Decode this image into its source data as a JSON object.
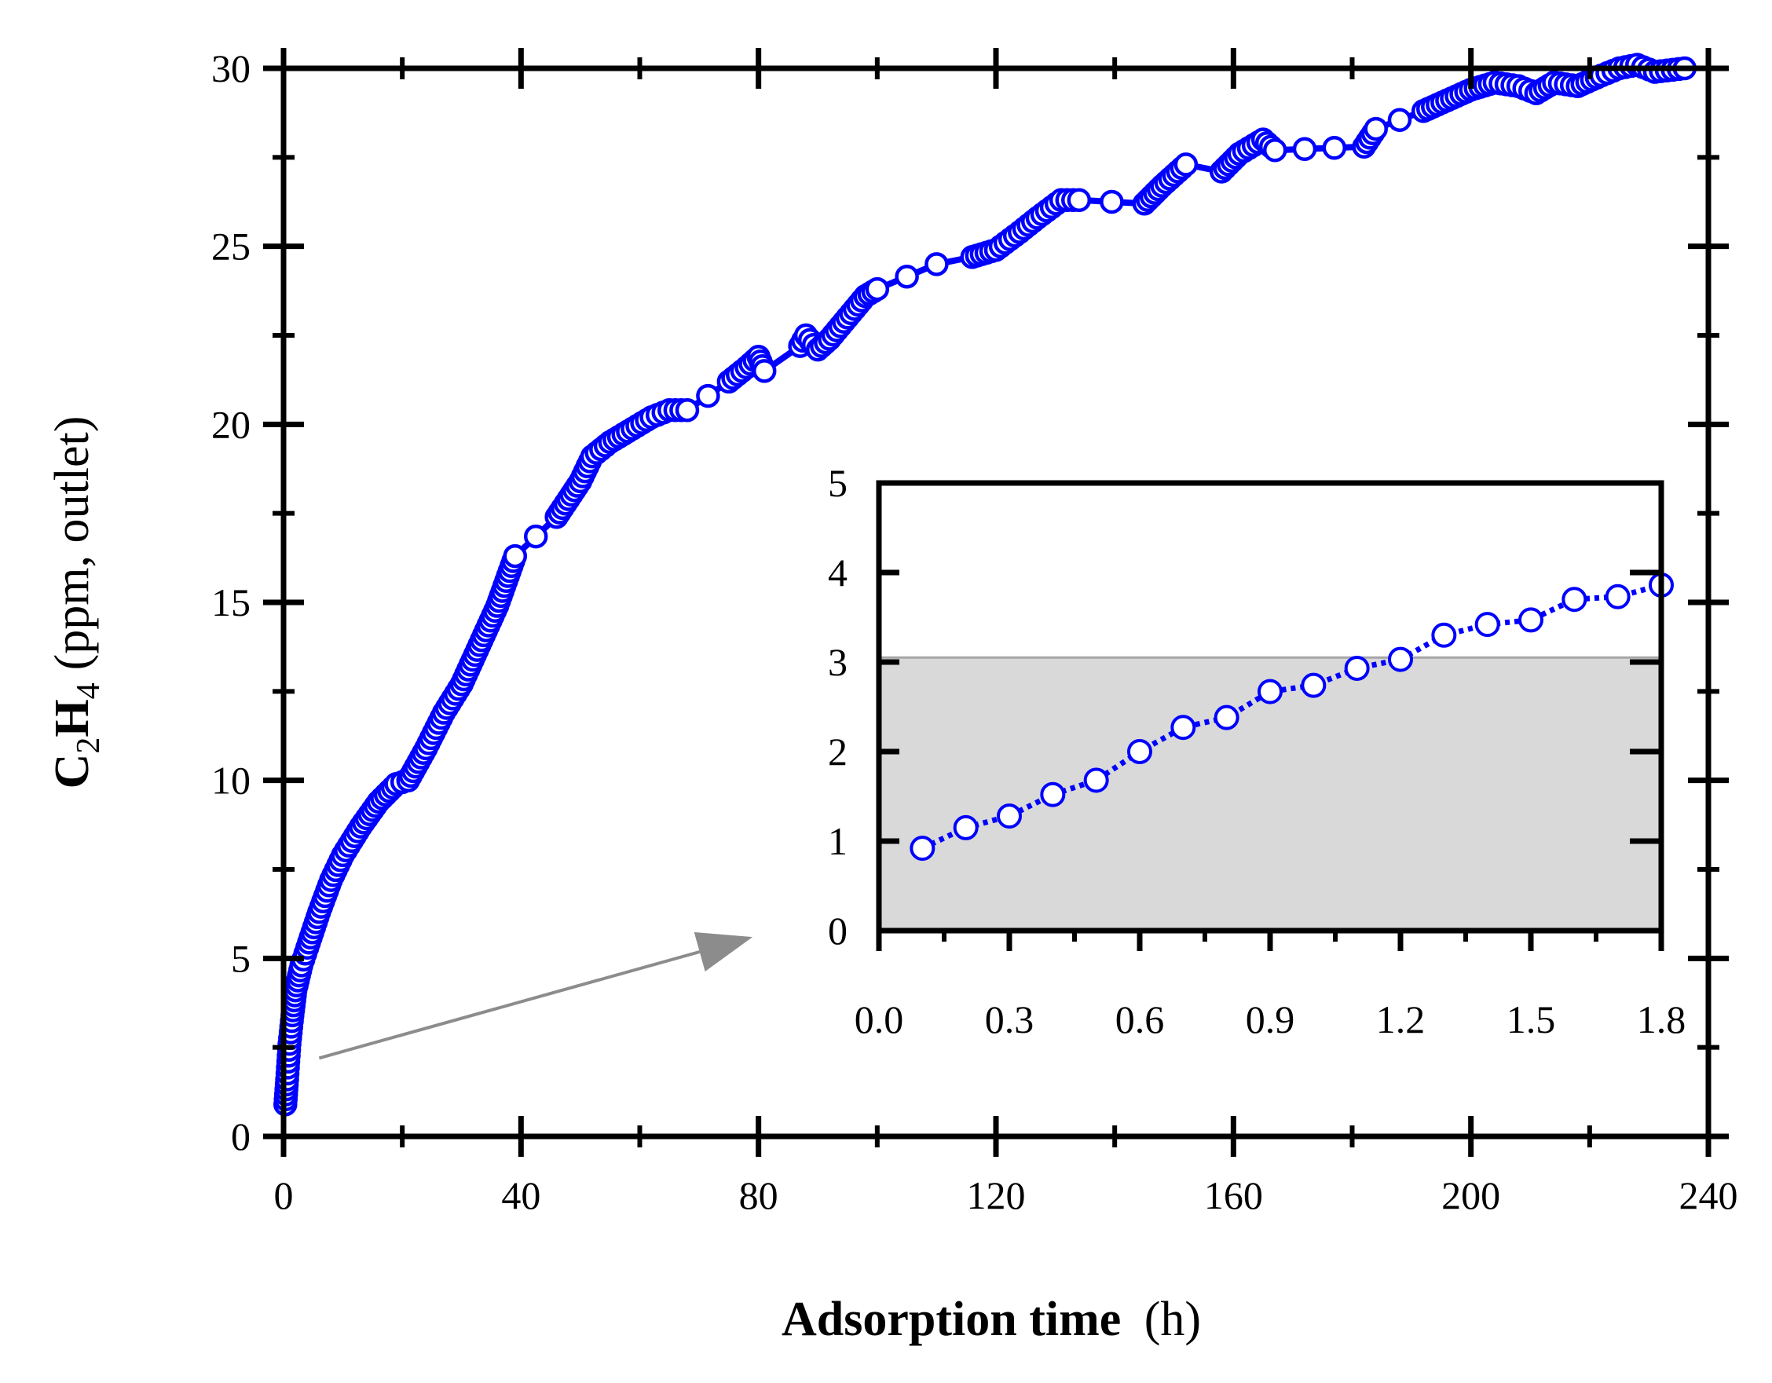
{
  "chart_data": [
    {
      "id": "main",
      "type": "scatter",
      "title": "",
      "xlabel": "Adsorption time",
      "xlabel_unit": "(h)",
      "ylabel_species": "C2H4",
      "ylabel_parts": {
        "C": "C",
        "sub1": "2",
        "H": "H",
        "sub2": "4"
      },
      "ylabel_rest": "(ppm, outlet)",
      "xlim": [
        0,
        240
      ],
      "ylim": [
        0,
        30
      ],
      "xticks": [
        0,
        40,
        80,
        120,
        160,
        200,
        240
      ],
      "yticks": [
        0,
        5,
        10,
        15,
        20,
        25,
        30
      ],
      "series_color": "#0000ff",
      "key_points": {
        "x": [
          0.3,
          0.6,
          1,
          1.5,
          2,
          3,
          4,
          6,
          8,
          10,
          13,
          16,
          19,
          21,
          24,
          27,
          30,
          33,
          36,
          39,
          46,
          50,
          52,
          55,
          58,
          62,
          65,
          68,
          75,
          78,
          80,
          81,
          87,
          88,
          90,
          92,
          95,
          98,
          100,
          110,
          116,
          120,
          124,
          127,
          131,
          134,
          145,
          148,
          152,
          158,
          161,
          165,
          167,
          182,
          184,
          192,
          196,
          200,
          204,
          208,
          211,
          214,
          218,
          222,
          225,
          228,
          231,
          236
        ],
        "y": [
          0.9,
          1.6,
          2.6,
          3.4,
          4.1,
          4.8,
          5.3,
          6.3,
          7.2,
          7.9,
          8.7,
          9.4,
          9.9,
          10.0,
          10.9,
          11.9,
          12.7,
          13.8,
          14.9,
          16.3,
          17.4,
          18.4,
          19.1,
          19.5,
          19.8,
          20.2,
          20.4,
          20.4,
          21.2,
          21.6,
          21.9,
          21.5,
          22.2,
          22.5,
          22.1,
          22.4,
          23.0,
          23.6,
          23.8,
          24.5,
          24.7,
          24.9,
          25.4,
          25.8,
          26.3,
          26.3,
          26.2,
          26.7,
          27.3,
          27.1,
          27.6,
          28.0,
          27.7,
          27.8,
          28.3,
          28.8,
          29.1,
          29.4,
          29.6,
          29.5,
          29.3,
          29.6,
          29.5,
          29.8,
          30.0,
          30.1,
          29.9,
          30.0
        ]
      },
      "annotation_arrow": {
        "from_data": [
          6,
          2.2
        ],
        "to_data": [
          79,
          5.6
        ],
        "color": "#8c8c8c"
      }
    },
    {
      "id": "inset",
      "type": "scatter",
      "xlim": [
        0,
        1.8
      ],
      "ylim": [
        0,
        5
      ],
      "xticks": [
        "0.0",
        "0.3",
        "0.6",
        "0.9",
        "1.2",
        "1.5",
        "1.8"
      ],
      "yticks": [
        0,
        1,
        2,
        3,
        4,
        5
      ],
      "shaded_region": {
        "ymin": 0,
        "ymax": 3.05,
        "color": "#d9d9d9",
        "edge_color": "#a6a6a6"
      },
      "series_color": "#0000ff",
      "x": [
        0.1,
        0.2,
        0.3,
        0.4,
        0.5,
        0.6,
        0.7,
        0.8,
        0.9,
        1.0,
        1.1,
        1.2,
        1.3,
        1.4,
        1.5,
        1.6,
        1.7,
        1.8
      ],
      "y": [
        0.92,
        1.15,
        1.28,
        1.52,
        1.68,
        2.0,
        2.27,
        2.38,
        2.67,
        2.74,
        2.93,
        3.03,
        3.3,
        3.42,
        3.47,
        3.7,
        3.73,
        3.86
      ]
    }
  ]
}
